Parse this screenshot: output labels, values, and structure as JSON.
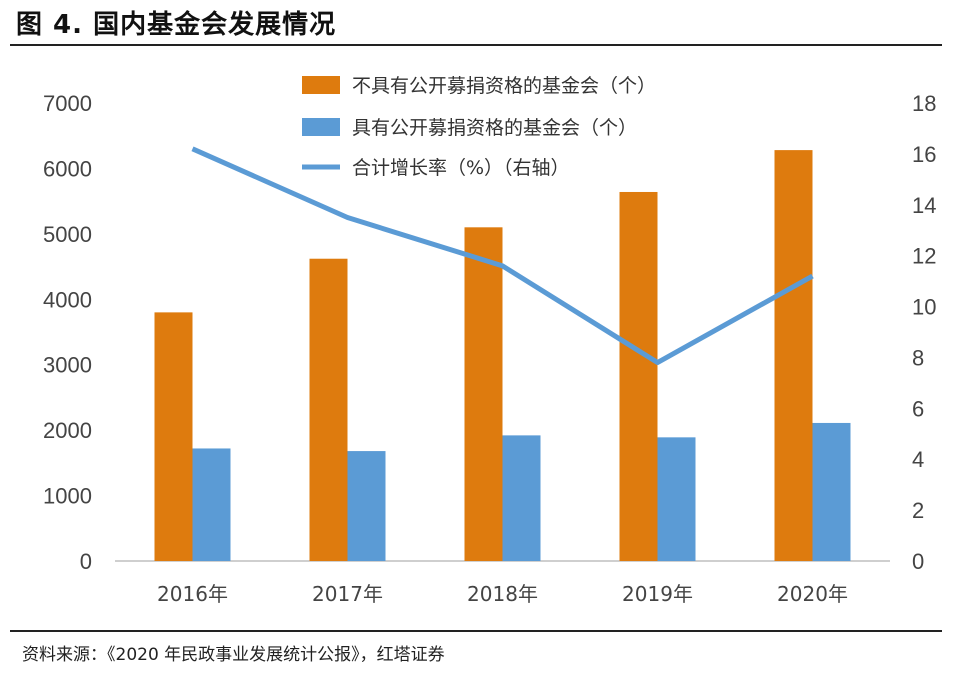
{
  "figure": {
    "title": "图 4. 国内基金会发展情况",
    "source": "资料来源：《2020 年民政事业发展统计公报》，红塔证券"
  },
  "chart_data": {
    "type": "bar+line",
    "categories": [
      "2016年",
      "2017年",
      "2018年",
      "2019年",
      "2020年"
    ],
    "series": [
      {
        "name": "不具有公开募捐资格的基金会（个）",
        "type": "bar",
        "axis": "left",
        "color": "#DE7B0E",
        "values": [
          3800,
          4620,
          5100,
          5640,
          6280
        ]
      },
      {
        "name": "具有公开募捐资格的基金会（个）",
        "type": "bar",
        "axis": "left",
        "color": "#5B9BD5",
        "values": [
          1720,
          1680,
          1920,
          1890,
          2110
        ]
      },
      {
        "name": "合计增长率（%）（右轴）",
        "type": "line",
        "axis": "right",
        "color": "#5B9BD5",
        "values": [
          16.2,
          13.5,
          11.6,
          7.8,
          11.2
        ]
      }
    ],
    "y_left": {
      "min": 0,
      "max": 7000,
      "ticks": [
        0,
        1000,
        2000,
        3000,
        4000,
        5000,
        6000,
        7000
      ]
    },
    "y_right": {
      "min": 0,
      "max": 18,
      "ticks": [
        0,
        2,
        4,
        6,
        8,
        10,
        12,
        14,
        16,
        18
      ]
    },
    "legend_position": "top-center",
    "grid": false
  }
}
